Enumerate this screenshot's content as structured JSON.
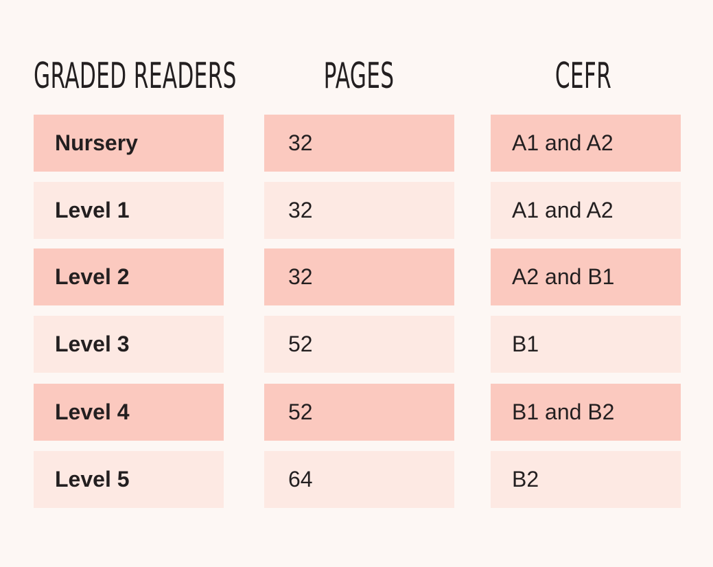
{
  "headers": {
    "readers": "GRADED READERS",
    "pages": "PAGES",
    "cefr": "CEFR"
  },
  "rows": [
    {
      "reader": "Nursery",
      "pages": "32",
      "cefr": "A1 and A2"
    },
    {
      "reader": "Level 1",
      "pages": "32",
      "cefr": "A1 and A2"
    },
    {
      "reader": "Level 2",
      "pages": "32",
      "cefr": "A2 and B1"
    },
    {
      "reader": "Level 3",
      "pages": "52",
      "cefr": "B1"
    },
    {
      "reader": "Level 4",
      "pages": "52",
      "cefr": "B1 and B2"
    },
    {
      "reader": "Level 5",
      "pages": "64",
      "cefr": "B2"
    }
  ],
  "colors": {
    "background": "#fdf7f4",
    "row_dark": "#fbc9bf",
    "row_light": "#fde9e3",
    "text": "#231f20"
  }
}
